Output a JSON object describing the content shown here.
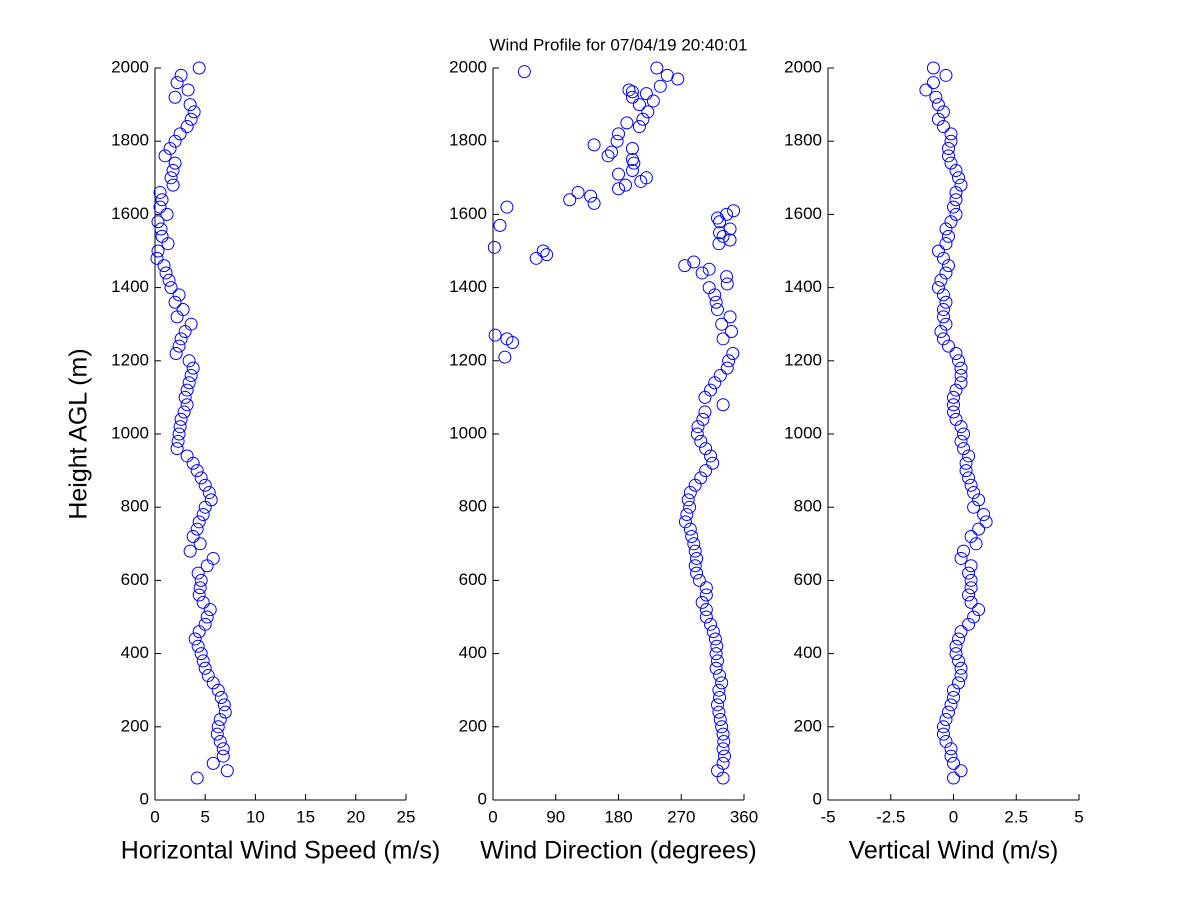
{
  "chart_data": [
    {
      "type": "scatter",
      "xlabel": "Horizontal Wind Speed (m/s)",
      "ylabel": "Height AGL (m)",
      "color": "#0000ff",
      "xlim": [
        0,
        25
      ],
      "xticks": [
        0,
        5,
        10,
        15,
        20,
        25
      ],
      "ylim": [
        0,
        2000
      ],
      "yticks": [
        0,
        200,
        400,
        600,
        800,
        1000,
        1200,
        1400,
        1600,
        1800,
        2000
      ],
      "x": [
        4.2,
        7.2,
        5.8,
        6.8,
        6.8,
        6.5,
        6.2,
        6.3,
        6.5,
        7.0,
        6.9,
        6.6,
        6.3,
        5.8,
        5.3,
        5.0,
        4.8,
        4.6,
        4.3,
        4.0,
        4.4,
        5.0,
        5.2,
        5.5,
        4.8,
        4.4,
        4.5,
        4.6,
        4.3,
        5.2,
        5.8,
        3.5,
        4.5,
        3.8,
        4.2,
        4.4,
        4.8,
        5.0,
        5.6,
        5.4,
        5.0,
        4.6,
        4.2,
        3.8,
        3.2,
        2.2,
        2.3,
        2.4,
        2.5,
        2.6,
        2.9,
        3.2,
        3.0,
        3.2,
        3.4,
        3.6,
        3.8,
        3.4,
        2.1,
        2.4,
        2.6,
        3.0,
        3.6,
        2.2,
        2.8,
        2.0,
        2.4,
        1.6,
        1.4,
        1.1,
        0.9,
        0.2,
        0.3,
        1.3,
        0.7,
        0.6,
        0.3,
        1.2,
        0.5,
        0.7,
        0.5,
        1.8,
        1.6,
        1.8,
        2.0,
        1.0,
        1.5,
        2.0,
        2.5,
        3.2,
        3.6,
        3.9,
        3.5,
        2.0,
        3.3,
        2.2,
        2.6,
        4.4
      ],
      "y": [
        60,
        80,
        100,
        120,
        140,
        160,
        180,
        200,
        220,
        240,
        260,
        280,
        300,
        320,
        340,
        360,
        380,
        400,
        420,
        440,
        460,
        480,
        500,
        520,
        540,
        560,
        580,
        600,
        620,
        640,
        660,
        680,
        700,
        720,
        740,
        760,
        780,
        800,
        820,
        840,
        860,
        880,
        900,
        920,
        940,
        960,
        980,
        1000,
        1020,
        1040,
        1060,
        1080,
        1100,
        1120,
        1140,
        1160,
        1180,
        1200,
        1220,
        1240,
        1260,
        1280,
        1300,
        1320,
        1340,
        1360,
        1380,
        1400,
        1420,
        1440,
        1460,
        1480,
        1500,
        1520,
        1540,
        1560,
        1580,
        1600,
        1620,
        1640,
        1660,
        1680,
        1700,
        1720,
        1740,
        1760,
        1780,
        1800,
        1820,
        1840,
        1860,
        1880,
        1900,
        1920,
        1940,
        1960,
        1980,
        2000
      ]
    },
    {
      "type": "scatter",
      "title": "Wind Profile for  07/04/19 20:40:01",
      "xlabel": "Wind Direction (degrees)",
      "color": "#0000ff",
      "xlim": [
        0,
        360
      ],
      "xticks": [
        0,
        90,
        180,
        270,
        360
      ],
      "ylim": [
        0,
        2000
      ],
      "yticks": [
        0,
        200,
        400,
        600,
        800,
        1000,
        1200,
        1400,
        1600,
        1800,
        2000
      ],
      "x": [
        330,
        322,
        330,
        332,
        330,
        331,
        330,
        328,
        326,
        324,
        322,
        325,
        324,
        328,
        325,
        320,
        322,
        320,
        321,
        319,
        316,
        312,
        306,
        306,
        300,
        306,
        306,
        296,
        292,
        290,
        292,
        290,
        288,
        285,
        283,
        276,
        278,
        282,
        280,
        283,
        290,
        298,
        305,
        315,
        312,
        305,
        298,
        293,
        294,
        301,
        304,
        330,
        304,
        312,
        318,
        326,
        336,
        338,
        344,
        28,
        20,
        3,
        17,
        330,
        342,
        328,
        340,
        322,
        320,
        318,
        310,
        336,
        335,
        300,
        275,
        288,
        310,
        324,
        330,
        325,
        340,
        325,
        322,
        335,
        345,
        340,
        62,
        72,
        77,
        2,
        10,
        20,
        145,
        110,
        140,
        122,
        180,
        190,
        212,
        220,
        180,
        200,
        202,
        200,
        165,
        170,
        145,
        200,
        178,
        180,
        192,
        210,
        215,
        222,
        210,
        230,
        200,
        220,
        195,
        200,
        240,
        250,
        265,
        45,
        235
      ],
      "y": [
        60,
        80,
        100,
        120,
        140,
        160,
        180,
        200,
        220,
        240,
        260,
        280,
        300,
        320,
        340,
        360,
        380,
        400,
        420,
        440,
        460,
        480,
        500,
        520,
        540,
        560,
        580,
        600,
        620,
        640,
        660,
        680,
        700,
        720,
        740,
        760,
        780,
        800,
        820,
        840,
        860,
        880,
        900,
        920,
        940,
        960,
        980,
        1000,
        1020,
        1040,
        1060,
        1080,
        1100,
        1120,
        1140,
        1160,
        1180,
        1200,
        1220,
        1250,
        1260,
        1270,
        1210,
        1260,
        1280,
        1300,
        1320,
        1340,
        1360,
        1380,
        1400,
        1410,
        1430,
        1440,
        1460,
        1470,
        1450,
        1520,
        1540,
        1550,
        1560,
        1580,
        1590,
        1600,
        1610,
        1530,
        1480,
        1500,
        1490,
        1510,
        1570,
        1620,
        1630,
        1640,
        1650,
        1660,
        1670,
        1680,
        1690,
        1700,
        1710,
        1720,
        1740,
        1750,
        1760,
        1770,
        1790,
        1780,
        1800,
        1820,
        1850,
        1840,
        1860,
        1880,
        1900,
        1910,
        1920,
        1930,
        1940,
        1935,
        1950,
        1980,
        1970,
        1990,
        2000
      ]
    },
    {
      "type": "scatter",
      "xlabel": "Vertical Wind (m/s)",
      "color": "#0000ff",
      "xlim": [
        -5,
        5
      ],
      "xticks": [
        -5,
        -2.5,
        0,
        2.5,
        5
      ],
      "ylim": [
        0,
        2000
      ],
      "yticks": [
        0,
        200,
        400,
        600,
        800,
        1000,
        1200,
        1400,
        1600,
        1800,
        2000
      ],
      "x": [
        0,
        0.3,
        0.0,
        -0.1,
        -0.1,
        -0.3,
        -0.4,
        -0.4,
        -0.3,
        -0.2,
        -0.1,
        0.0,
        0.0,
        0.2,
        0.3,
        0.3,
        0.2,
        0.1,
        0.1,
        0.2,
        0.3,
        0.6,
        0.8,
        1.0,
        0.7,
        0.6,
        0.7,
        0.7,
        0.6,
        0.7,
        0.3,
        0.4,
        0.9,
        0.7,
        1.0,
        1.3,
        1.2,
        0.8,
        1.0,
        0.8,
        0.7,
        0.6,
        0.5,
        0.5,
        0.6,
        0.4,
        0.3,
        0.4,
        0.3,
        0.1,
        0.0,
        0.0,
        0.0,
        0.1,
        0.3,
        0.3,
        0.3,
        0.2,
        0.1,
        -0.2,
        -0.4,
        -0.5,
        -0.3,
        -0.4,
        -0.4,
        -0.3,
        -0.4,
        -0.6,
        -0.5,
        -0.3,
        -0.2,
        -0.4,
        -0.6,
        -0.3,
        -0.2,
        -0.3,
        -0.1,
        0.1,
        0.0,
        0.1,
        0.1,
        0.3,
        0.2,
        0.1,
        -0.1,
        -0.2,
        -0.2,
        -0.1,
        -0.1,
        -0.4,
        -0.6,
        -0.4,
        -0.6,
        -0.7,
        -1.1,
        -0.8,
        -0.3,
        -0.8
      ],
      "y": [
        60,
        80,
        100,
        120,
        140,
        160,
        180,
        200,
        220,
        240,
        260,
        280,
        300,
        320,
        340,
        360,
        380,
        400,
        420,
        440,
        460,
        480,
        500,
        520,
        540,
        560,
        580,
        600,
        620,
        640,
        660,
        680,
        700,
        720,
        740,
        760,
        780,
        800,
        820,
        840,
        860,
        880,
        900,
        920,
        940,
        960,
        980,
        1000,
        1020,
        1040,
        1060,
        1080,
        1100,
        1120,
        1140,
        1160,
        1180,
        1200,
        1220,
        1240,
        1260,
        1280,
        1300,
        1320,
        1340,
        1360,
        1380,
        1400,
        1420,
        1440,
        1460,
        1480,
        1500,
        1520,
        1540,
        1560,
        1580,
        1600,
        1620,
        1640,
        1660,
        1680,
        1700,
        1720,
        1740,
        1760,
        1780,
        1800,
        1820,
        1840,
        1860,
        1880,
        1900,
        1920,
        1940,
        1960,
        1980,
        2000
      ]
    }
  ]
}
